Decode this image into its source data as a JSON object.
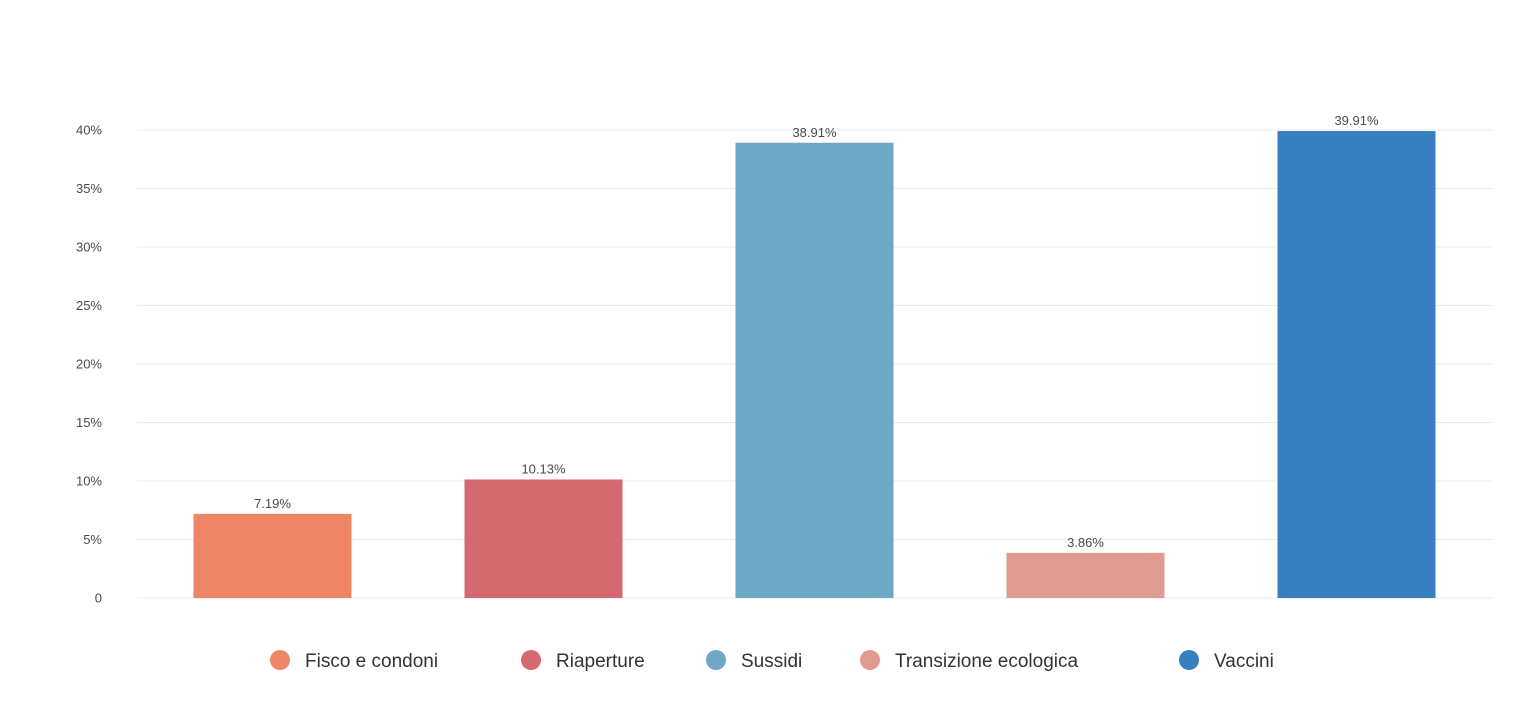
{
  "chart_data": {
    "type": "bar",
    "categories": [
      "Fisco e condoni",
      "Riaperture",
      "Sussidi",
      "Transizione ecologica",
      "Vaccini"
    ],
    "values": [
      7.19,
      10.13,
      38.91,
      3.86,
      39.91
    ],
    "value_labels": [
      "7.19%",
      "10.13%",
      "38.91%",
      "3.86%",
      "39.91%"
    ],
    "colors": [
      "#ee8566",
      "#d6686f",
      "#6fa8c6",
      "#df9b8e",
      "#377fbe"
    ],
    "ylim": [
      0,
      40
    ],
    "yticks": [
      0,
      5,
      10,
      15,
      20,
      25,
      30,
      35,
      40
    ],
    "ytick_labels": [
      "0",
      "5%",
      "10%",
      "15%",
      "20%",
      "25%",
      "30%",
      "35%",
      "40%"
    ],
    "grid": true,
    "legend": {
      "position": "bottom",
      "entries": [
        "Fisco e condoni",
        "Riaperture",
        "Sussidi",
        "Transizione ecologica",
        "Vaccini"
      ]
    }
  }
}
